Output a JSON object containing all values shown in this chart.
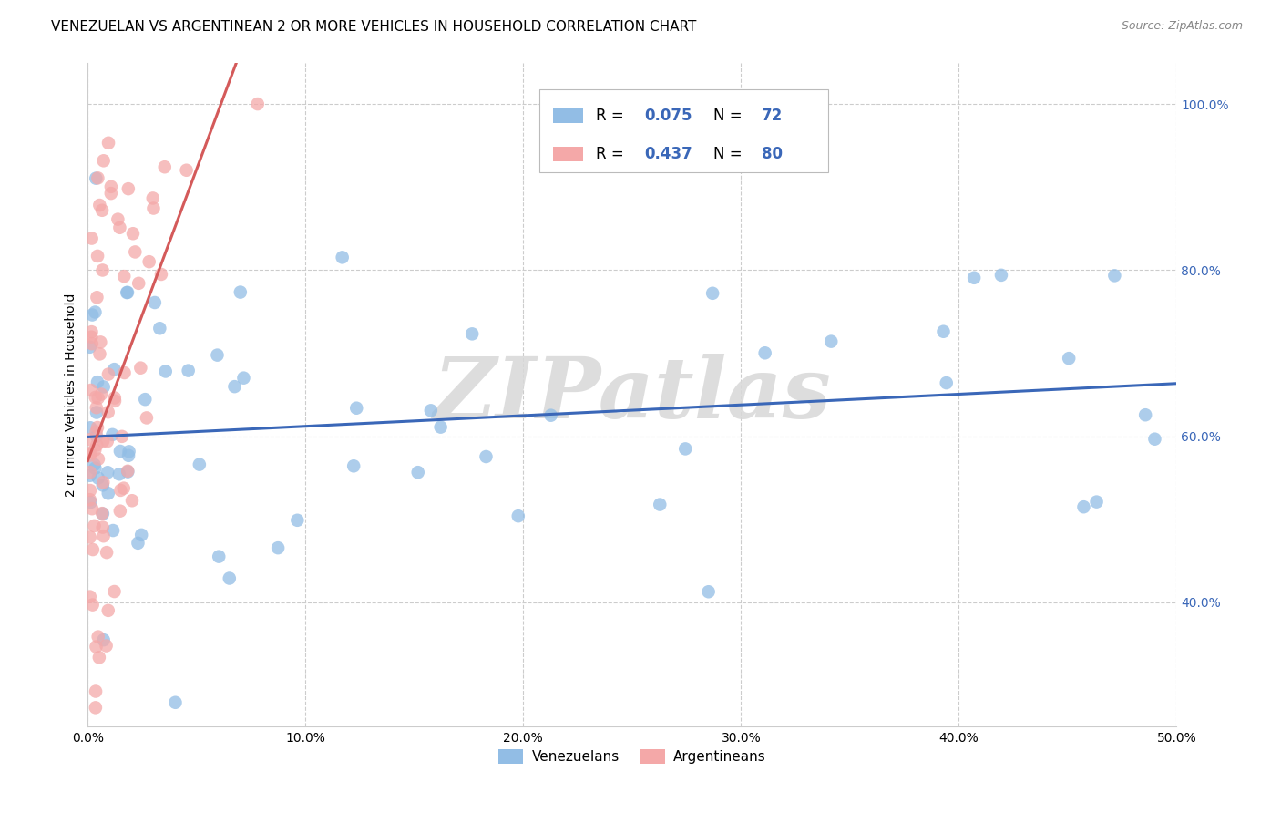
{
  "title": "VENEZUELAN VS ARGENTINEAN 2 OR MORE VEHICLES IN HOUSEHOLD CORRELATION CHART",
  "source": "Source: ZipAtlas.com",
  "ylabel": "2 or more Vehicles in Household",
  "r_venezuelan": 0.075,
  "n_venezuelan": 72,
  "r_argentinean": 0.437,
  "n_argentinean": 80,
  "color_venezuelan": "#92bde5",
  "color_argentinean": "#f4a8a8",
  "trendline_venezuelan": "#3a67b8",
  "trendline_argentinean": "#d45a5a",
  "legend_r_color": "#3a67b8",
  "background_color": "#ffffff",
  "grid_color": "#cccccc",
  "watermark_color": "#d8d8d8",
  "xlim": [
    0.0,
    0.5
  ],
  "ylim": [
    0.25,
    1.05
  ],
  "xticks": [
    0.0,
    0.1,
    0.2,
    0.3,
    0.4,
    0.5
  ],
  "yticks": [
    0.4,
    0.6,
    0.8,
    1.0
  ],
  "xticklabels": [
    "0.0%",
    "10.0%",
    "20.0%",
    "30.0%",
    "40.0%",
    "50.0%"
  ],
  "yticklabels": [
    "40.0%",
    "60.0%",
    "80.0%",
    "100.0%"
  ],
  "title_fontsize": 11,
  "source_fontsize": 9,
  "axis_label_fontsize": 10,
  "tick_fontsize": 10,
  "legend_fontsize": 12
}
